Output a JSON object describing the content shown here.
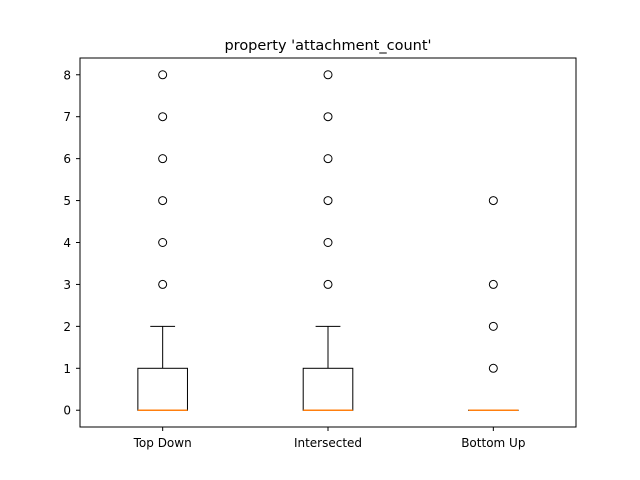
{
  "chart_data": {
    "type": "box",
    "title": "property 'attachment_count'",
    "xlabel": "",
    "ylabel": "",
    "ylim": [
      -0.4,
      8.4
    ],
    "yticks": [
      0,
      1,
      2,
      3,
      4,
      5,
      6,
      7,
      8
    ],
    "grid": false,
    "colors": {
      "box": "#000000",
      "median": "#ff7f0e",
      "background": "#ffffff"
    },
    "categories": [
      "Top Down",
      "Intersected",
      "Bottom Up"
    ],
    "boxes": [
      {
        "category": "Top Down",
        "whisker_low": 0,
        "q1": 0,
        "median": 0,
        "q3": 1,
        "whisker_high": 2,
        "fliers": [
          3,
          4,
          5,
          6,
          7,
          8
        ]
      },
      {
        "category": "Intersected",
        "whisker_low": 0,
        "q1": 0,
        "median": 0,
        "q3": 1,
        "whisker_high": 2,
        "fliers": [
          3,
          4,
          5,
          6,
          7,
          8
        ]
      },
      {
        "category": "Bottom Up",
        "whisker_low": 0,
        "q1": 0,
        "median": 0,
        "q3": 0,
        "whisker_high": 0,
        "fliers": [
          1,
          2,
          3,
          5
        ]
      }
    ]
  }
}
